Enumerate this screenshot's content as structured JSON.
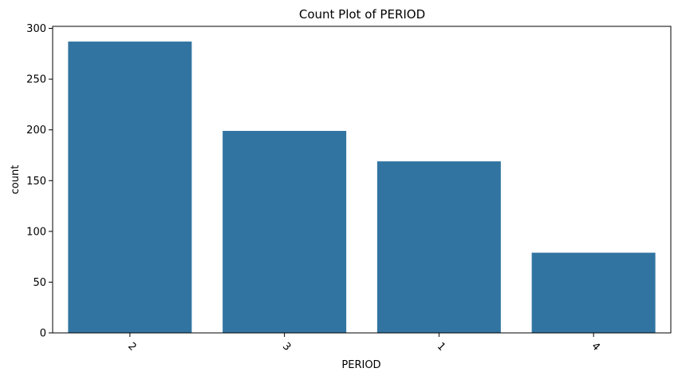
{
  "chart_data": {
    "type": "bar",
    "title": "Count Plot of PERIOD",
    "xlabel": "PERIOD",
    "ylabel": "count",
    "categories": [
      "2",
      "3",
      "1",
      "4"
    ],
    "values": [
      287,
      199,
      169,
      79
    ],
    "ylim": [
      0,
      302
    ],
    "yticks": [
      0,
      50,
      100,
      150,
      200,
      250,
      300
    ],
    "xtick_rotation_deg": 45,
    "grid": false,
    "bar_color": "#3274a1"
  }
}
